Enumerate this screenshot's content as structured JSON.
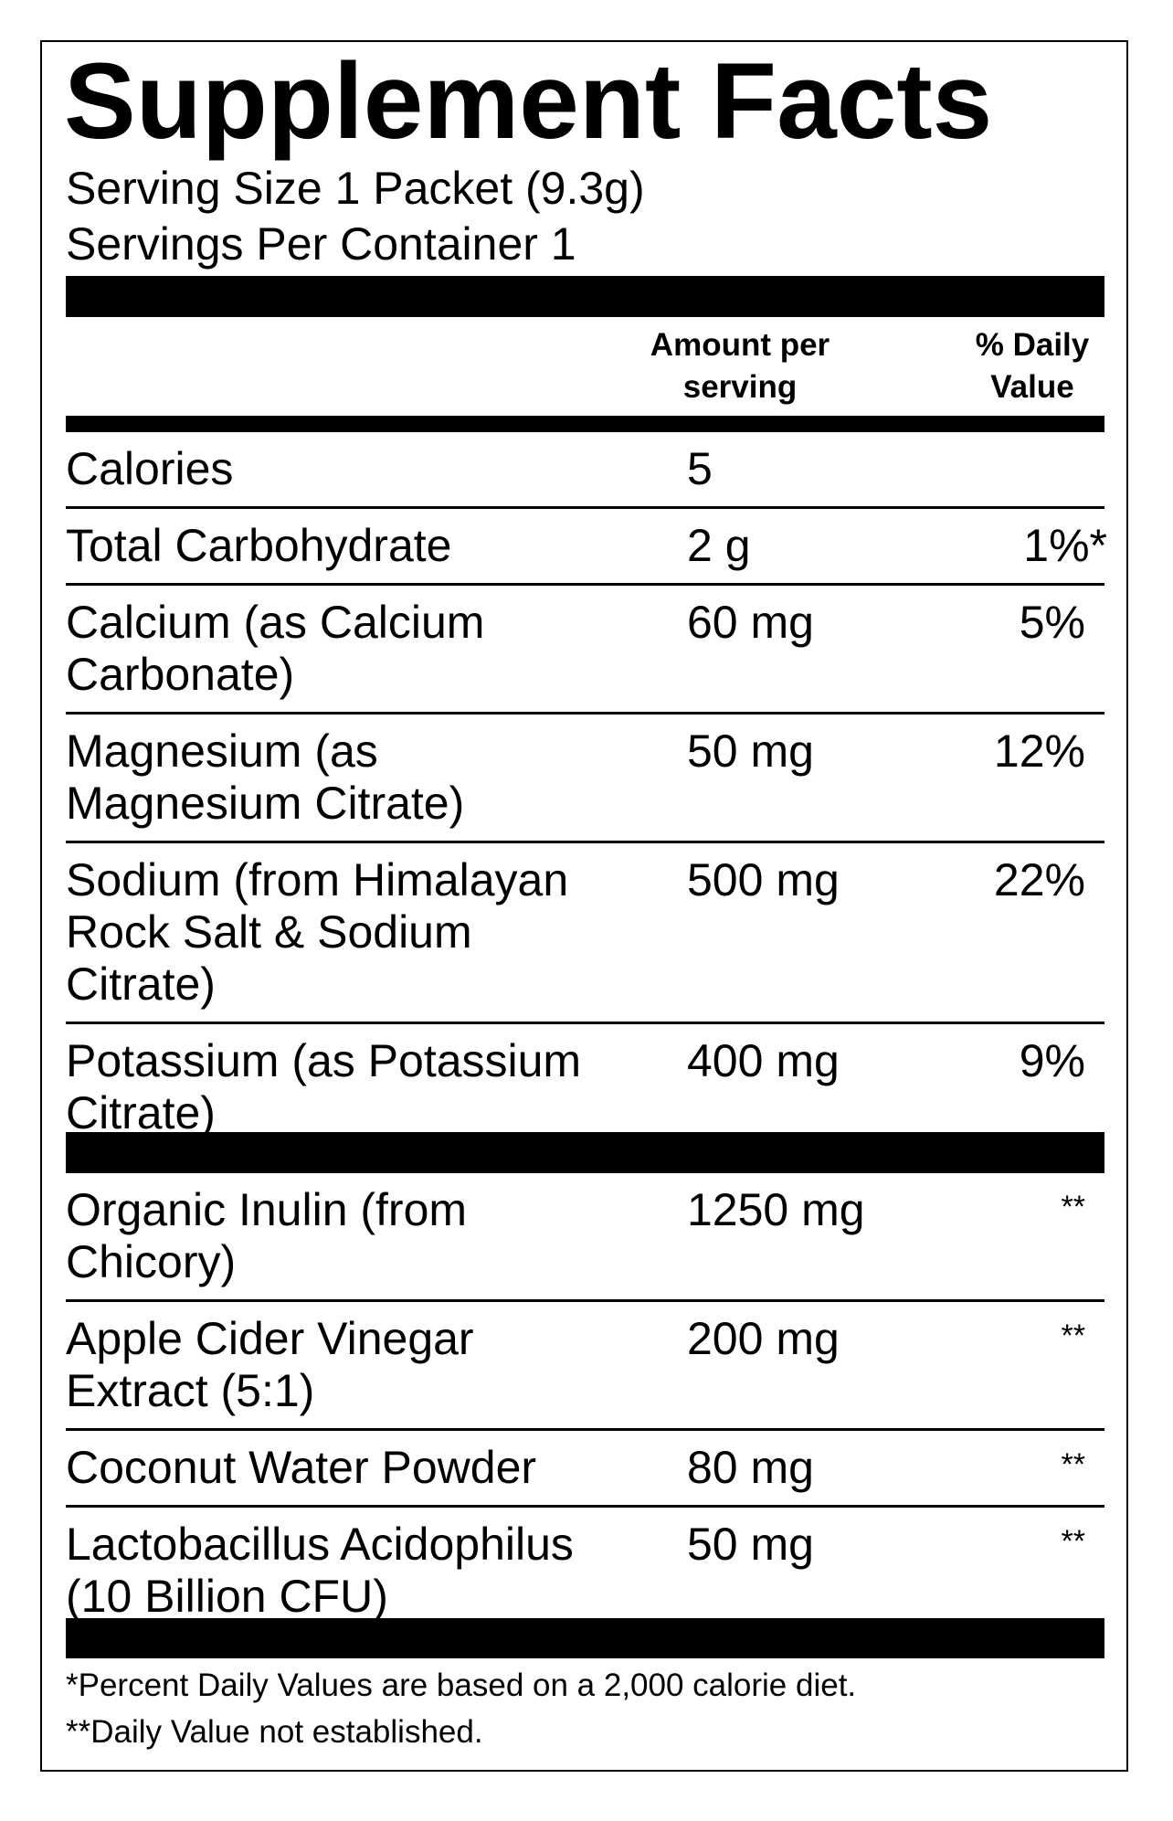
{
  "title": "Supplement Facts",
  "serving_size": "Serving Size 1 Packet (9.3g)",
  "servings_per_container": "Servings Per Container 1",
  "header": {
    "amount": "Amount per\nserving",
    "daily_value": "% Daily\nValue"
  },
  "section1": [
    {
      "name": "Calories",
      "amount": "5",
      "dv": ""
    },
    {
      "name": "Total Carbohydrate",
      "amount": "2 g",
      "dv": "1%*"
    },
    {
      "name": "Calcium (as Calcium\nCarbonate)",
      "amount": "60 mg",
      "dv": "5%"
    },
    {
      "name": "Magnesium (as\nMagnesium Citrate)",
      "amount": "50 mg",
      "dv": "12%"
    },
    {
      "name": "Sodium (from Himalayan\nRock Salt & Sodium\nCitrate)",
      "amount": "500 mg",
      "dv": "22%"
    },
    {
      "name": "Potassium (as Potassium\nCitrate)",
      "amount": "400 mg",
      "dv": "9%"
    }
  ],
  "section2": [
    {
      "name": "Organic Inulin (from\nChicory)",
      "amount": "1250 mg",
      "dv": "**"
    },
    {
      "name": "Apple Cider Vinegar\nExtract (5:1)",
      "amount": "200 mg",
      "dv": "**"
    },
    {
      "name": "Coconut Water Powder",
      "amount": "80 mg",
      "dv": "**"
    },
    {
      "name": "Lactobacillus Acidophilus\n(10 Billion CFU)",
      "amount": "50 mg",
      "dv": "**"
    }
  ],
  "footnotes": [
    "*Percent Daily Values are based on a 2,000 calorie diet.",
    "**Daily Value not established."
  ]
}
